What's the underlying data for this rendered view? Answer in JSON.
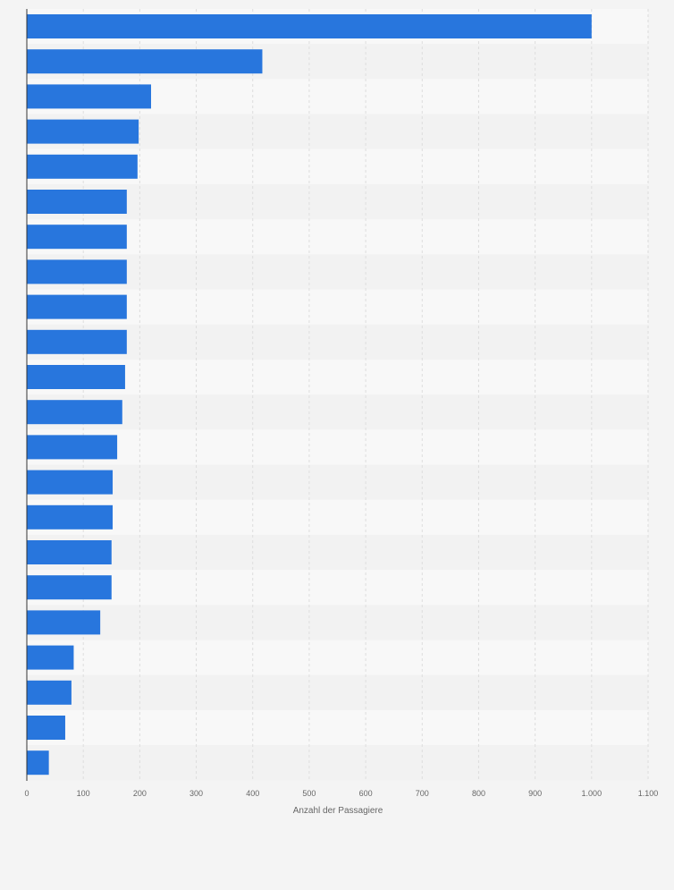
{
  "chart_data": {
    "type": "bar",
    "orientation": "horizontal",
    "title": "",
    "xlabel": "Anzahl der Passagiere",
    "ylabel": "",
    "xlim": [
      0,
      1100
    ],
    "x_ticks": [
      0,
      100,
      200,
      300,
      400,
      500,
      600,
      700,
      800,
      900,
      1000,
      1100
    ],
    "x_tick_labels": [
      "0",
      "100",
      "200",
      "300",
      "400",
      "500",
      "600",
      "700",
      "800",
      "900",
      "1.000",
      "1.100"
    ],
    "grid": true,
    "categories": [
      "",
      "",
      "",
      "",
      "",
      "",
      "",
      "",
      "",
      "",
      "",
      "",
      "",
      "",
      "",
      "",
      "",
      "",
      "",
      "",
      "",
      ""
    ],
    "values": [
      1000,
      417,
      220,
      198,
      196,
      177,
      177,
      177,
      177,
      177,
      174,
      169,
      160,
      152,
      152,
      150,
      150,
      130,
      83,
      79,
      68,
      39
    ],
    "colors": {
      "bar": "#2876dd",
      "band_light": "#f8f8f8",
      "band_dark": "#f2f2f2",
      "grid": "#dddddd",
      "axis": "#333333",
      "tick_text": "#666666",
      "background": "#f4f4f4"
    }
  }
}
